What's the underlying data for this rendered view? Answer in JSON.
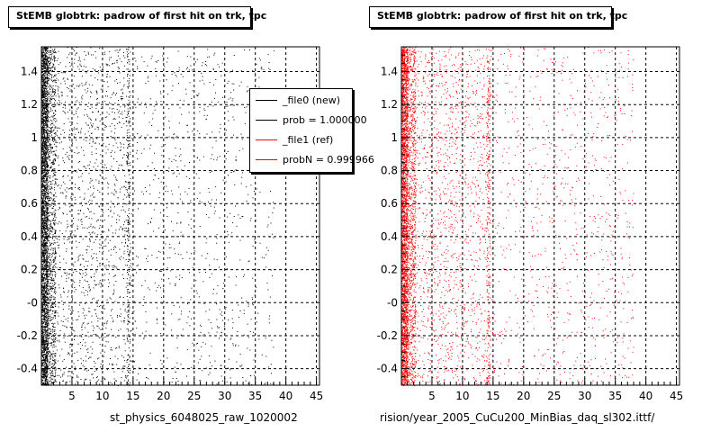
{
  "colors": {
    "new": "#000000",
    "ref": "#ff0000",
    "grid": "#000000",
    "frame": "#000000"
  },
  "chart_data": [
    {
      "type": "scatter",
      "title": "StEMB globtrk: padrow of first hit on trk, tpc",
      "xlabel": "st_physics_6048025_raw_1020002",
      "xlim": [
        0,
        45.5
      ],
      "ylim": [
        -0.5,
        1.55
      ],
      "x_ticks": [
        5,
        10,
        15,
        20,
        25,
        30,
        35,
        40,
        45
      ],
      "y_ticks": [
        -0.4,
        -0.2,
        0,
        0.2,
        0.4,
        0.6,
        0.8,
        1,
        1.2,
        1.4
      ],
      "y_tick_labels": [
        "-0.4",
        "-0.2",
        "-0",
        "0.2",
        "0.4",
        "0.6",
        "0.8",
        "1",
        "1.2",
        "1.4"
      ],
      "grid": true,
      "series_color": "#000000",
      "density": {
        "dense_x_max": 1,
        "mid_x_max": 14.5,
        "sparse_x_max": 38
      },
      "legend": {
        "placement": "top-right",
        "entries": [
          {
            "label": "_file0 (new)",
            "color": "#000000"
          },
          {
            "label": "prob = 1.000000",
            "color": "#000000"
          },
          {
            "label": "_file1 (ref)",
            "color": "#ff0000"
          },
          {
            "label": "probN = 0.999966",
            "color": "#ff0000"
          }
        ]
      }
    },
    {
      "type": "scatter",
      "title": "StEMB globtrk: padrow of first hit on trk, tpc",
      "xlabel": "rision/year_2005_CuCu200_MinBias_daq_sl302.ittf/",
      "xlim": [
        0,
        45.5
      ],
      "ylim": [
        -0.5,
        1.55
      ],
      "x_ticks": [
        5,
        10,
        15,
        20,
        25,
        30,
        35,
        40,
        45
      ],
      "y_ticks": [
        -0.4,
        -0.2,
        0,
        0.2,
        0.4,
        0.6,
        0.8,
        1,
        1.2,
        1.4
      ],
      "y_tick_labels": [
        "-0.4",
        "-0.2",
        "-0",
        "0.2",
        "0.4",
        "0.6",
        "0.8",
        "1",
        "1.2",
        "1.4"
      ],
      "grid": true,
      "series_color": "#ff0000",
      "density": {
        "dense_x_max": 1,
        "mid_x_max": 14.5,
        "sparse_x_max": 38
      }
    }
  ]
}
